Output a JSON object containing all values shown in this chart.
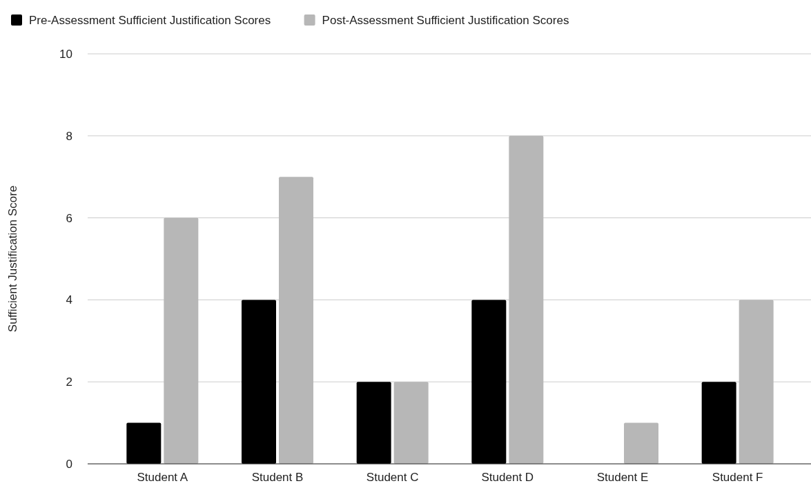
{
  "chart_data": {
    "type": "bar",
    "ylabel": "Sufficient Justification Score",
    "categories": [
      "Student A",
      "Student B",
      "Student C",
      "Student D",
      "Student E",
      "Student F"
    ],
    "series": [
      {
        "name": "Pre-Assessment Sufficient Justification Scores",
        "color": "#000000",
        "values": [
          1,
          4,
          2,
          4,
          0,
          2
        ]
      },
      {
        "name": "Post-Assessment Sufficient Justification Scores",
        "color": "#b7b7b7",
        "values": [
          6,
          7,
          2,
          8,
          1,
          4
        ]
      }
    ],
    "ylim": [
      0,
      10
    ],
    "yticks": [
      0,
      2,
      4,
      6,
      8,
      10
    ],
    "grid": "y",
    "legend": "top left"
  }
}
